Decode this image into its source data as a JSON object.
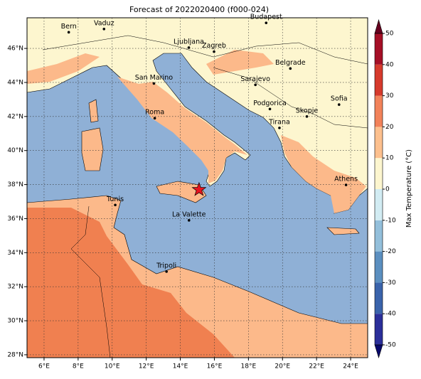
{
  "title": "Forecast of 2022020400 (f000-024)",
  "map": {
    "xlim": [
      5,
      25
    ],
    "ylim": [
      27.83,
      47.8
    ],
    "xticks": [
      {
        "value": 6,
        "label": "6°E"
      },
      {
        "value": 8,
        "label": "8°E"
      },
      {
        "value": 10,
        "label": "10°E"
      },
      {
        "value": 12,
        "label": "12°E"
      },
      {
        "value": 14,
        "label": "14°E"
      },
      {
        "value": 16,
        "label": "16°E"
      },
      {
        "value": 18,
        "label": "18°E"
      },
      {
        "value": 20,
        "label": "20°E"
      },
      {
        "value": 22,
        "label": "22°E"
      },
      {
        "value": 24,
        "label": "24°E"
      }
    ],
    "yticks": [
      {
        "value": 28,
        "label": "28°N"
      },
      {
        "value": 30,
        "label": "30°N"
      },
      {
        "value": 32,
        "label": "32°N"
      },
      {
        "value": 34,
        "label": "34°N"
      },
      {
        "value": 36,
        "label": "36°N"
      },
      {
        "value": 38,
        "label": "38°N"
      },
      {
        "value": 40,
        "label": "40°N"
      },
      {
        "value": 42,
        "label": "42°N"
      },
      {
        "value": 44,
        "label": "44°N"
      },
      {
        "value": 46,
        "label": "46°N"
      }
    ],
    "cities": [
      {
        "name": "Bern",
        "lon": 7.45,
        "lat": 46.95
      },
      {
        "name": "Vaduz",
        "lon": 9.52,
        "lat": 47.14
      },
      {
        "name": "Budapest",
        "lon": 19.04,
        "lat": 47.5
      },
      {
        "name": "Ljubljana",
        "lon": 14.5,
        "lat": 46.05
      },
      {
        "name": "Zagreb",
        "lon": 15.98,
        "lat": 45.81
      },
      {
        "name": "Belgrade",
        "lon": 20.46,
        "lat": 44.82
      },
      {
        "name": "San Marino",
        "lon": 12.45,
        "lat": 43.94
      },
      {
        "name": "Sarajevo",
        "lon": 18.41,
        "lat": 43.86
      },
      {
        "name": "Sofia",
        "lon": 23.32,
        "lat": 42.7
      },
      {
        "name": "Roma",
        "lon": 12.5,
        "lat": 41.9
      },
      {
        "name": "Podgorica",
        "lon": 19.26,
        "lat": 42.44
      },
      {
        "name": "Skopje",
        "lon": 21.43,
        "lat": 42.0
      },
      {
        "name": "Tirana",
        "lon": 19.82,
        "lat": 41.33
      },
      {
        "name": "Athens",
        "lon": 23.73,
        "lat": 37.98
      },
      {
        "name": "Tunis",
        "lon": 10.18,
        "lat": 36.8
      },
      {
        "name": "La Valette",
        "lon": 14.51,
        "lat": 35.9
      },
      {
        "name": "Tripoli",
        "lon": 13.19,
        "lat": 32.89
      }
    ],
    "marker": {
      "lon": 15.1,
      "lat": 37.7,
      "color": "#e8141e"
    }
  },
  "colorbar": {
    "label": "Max Temperature (°C)",
    "ticks": [
      -50,
      -40,
      -30,
      -20,
      -10,
      0,
      10,
      20,
      30,
      40,
      50
    ],
    "colors": [
      "#2b2f9a",
      "#3a63ab",
      "#5b8fc0",
      "#93bfdb",
      "#d2ecf3",
      "#fdf6cf",
      "#fdc08e",
      "#f2825a",
      "#d63a2c",
      "#a50f26"
    ],
    "extend_colors": [
      "#08086b",
      "#67001f"
    ]
  }
}
